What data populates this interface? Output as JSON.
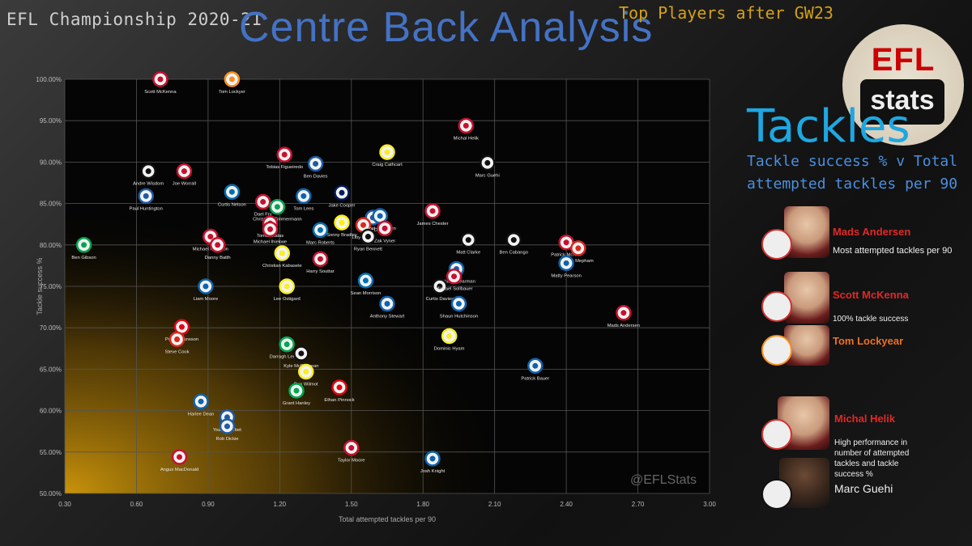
{
  "header": {
    "league": "EFL Championship 2020-21",
    "title": "Centre Back Analysis",
    "subtitle": "Top Players after GW23"
  },
  "logo": {
    "top": "EFL",
    "bottom": "stats"
  },
  "panel": {
    "heading": "Tackles",
    "description": "Tackle success % v Total attempted tackles per 90",
    "highlights": [
      {
        "name": "Mads Andersen",
        "note": "Most attempted tackles per 90"
      },
      {
        "name": "Scott McKenna",
        "note": "100% tackle success"
      },
      {
        "name": "Tom Lockyear",
        "note": ""
      },
      {
        "name": "Michal Helik",
        "note": "High performance in number of attempted tackles and tackle success %"
      },
      {
        "name": "Marc Guehi",
        "note": ""
      }
    ]
  },
  "chart_data": {
    "type": "scatter",
    "title": "",
    "xlabel": "Total attempted tackles per 90",
    "ylabel": "Tackle success %",
    "xlim": [
      0.3,
      3.0
    ],
    "ylim": [
      50,
      100
    ],
    "xticks": [
      "0.30",
      "0.60",
      "0.90",
      "1.20",
      "1.50",
      "1.80",
      "2.10",
      "2.40",
      "2.70",
      "3.00"
    ],
    "yticks": [
      "50.00%",
      "55.00%",
      "60.00%",
      "65.00%",
      "70.00%",
      "75.00%",
      "80.00%",
      "85.00%",
      "90.00%",
      "95.00%",
      "100.00%"
    ],
    "grid": true,
    "watermark": "@EFLStats",
    "points": [
      {
        "name": "Scott McKenna",
        "x": 0.7,
        "y": 100.0,
        "color": "#c8102e"
      },
      {
        "name": "Tom Lockyer",
        "x": 1.0,
        "y": 100.0,
        "color": "#f78f1e"
      },
      {
        "name": "Michal Helik",
        "x": 1.98,
        "y": 94.4,
        "color": "#c8102e"
      },
      {
        "name": "Tobias Figueiredo",
        "x": 1.22,
        "y": 90.9,
        "color": "#c8102e"
      },
      {
        "name": "Craig Cathcart",
        "x": 1.65,
        "y": 91.2,
        "color": "#fbee23"
      },
      {
        "name": "Ben Davies",
        "x": 1.35,
        "y": 89.8,
        "color": "#1d5ba4"
      },
      {
        "name": "Marc Guehi",
        "x": 2.07,
        "y": 89.9,
        "color": "#111111"
      },
      {
        "name": "Andre Wisdom",
        "x": 0.65,
        "y": 88.9,
        "color": "#111111"
      },
      {
        "name": "Joe Worrall",
        "x": 0.8,
        "y": 88.9,
        "color": "#c8102e"
      },
      {
        "name": "Curtis Nelson",
        "x": 1.0,
        "y": 86.4,
        "color": "#0070b5"
      },
      {
        "name": "Dael Fry",
        "x": 1.13,
        "y": 85.2,
        "color": "#c8102e"
      },
      {
        "name": "Christoph Zimmermann",
        "x": 1.19,
        "y": 84.6,
        "color": "#00a650"
      },
      {
        "name": "Tom Lees",
        "x": 1.3,
        "y": 85.9,
        "color": "#0e63ad"
      },
      {
        "name": "Jake Cooper",
        "x": 1.46,
        "y": 86.3,
        "color": "#001d5e"
      },
      {
        "name": "Paul Huntington",
        "x": 0.64,
        "y": 85.9,
        "color": "#1d5ba4"
      },
      {
        "name": "Robert Dickie",
        "x": 1.59,
        "y": 83.3,
        "color": "#1d5ba4"
      },
      {
        "name": "Lloyd Kelly",
        "x": 1.55,
        "y": 82.4,
        "color": "#da291c"
      },
      {
        "name": "Joost van Aken",
        "x": 1.62,
        "y": 83.5,
        "color": "#0e63ad"
      },
      {
        "name": "Tomas Kalas",
        "x": 1.16,
        "y": 82.6,
        "color": "#c8102e"
      },
      {
        "name": "Sonny Bradley",
        "x": 1.46,
        "y": 82.7,
        "color": "#fff200"
      },
      {
        "name": "Zak Vyner",
        "x": 1.64,
        "y": 82.0,
        "color": "#c8102e"
      },
      {
        "name": "James Chester",
        "x": 1.84,
        "y": 84.1,
        "color": "#c8102e"
      },
      {
        "name": "Michael Ihiekwe",
        "x": 1.16,
        "y": 81.9,
        "color": "#c8102e"
      },
      {
        "name": "Marc Roberts",
        "x": 1.37,
        "y": 81.8,
        "color": "#0070b5"
      },
      {
        "name": "Ryan Bennett",
        "x": 1.57,
        "y": 81.0,
        "color": "#111111"
      },
      {
        "name": "Michael Morrison",
        "x": 0.91,
        "y": 81.0,
        "color": "#c8102e"
      },
      {
        "name": "Danny Batth",
        "x": 0.94,
        "y": 80.0,
        "color": "#c8102e"
      },
      {
        "name": "Matt Clarke",
        "x": 1.99,
        "y": 80.6,
        "color": "#111111"
      },
      {
        "name": "Ben Cabango",
        "x": 2.18,
        "y": 80.6,
        "color": "#111111"
      },
      {
        "name": "Patrick McNair",
        "x": 2.4,
        "y": 80.3,
        "color": "#c8102e"
      },
      {
        "name": "Chris Mepham",
        "x": 2.45,
        "y": 79.6,
        "color": "#da291c"
      },
      {
        "name": "Ben Gibson",
        "x": 0.38,
        "y": 80.0,
        "color": "#00a650"
      },
      {
        "name": "Christian Kabasele",
        "x": 1.21,
        "y": 79.0,
        "color": "#fbee23"
      },
      {
        "name": "Harry Souttar",
        "x": 1.37,
        "y": 78.3,
        "color": "#c8102e"
      },
      {
        "name": "Richard Stearman",
        "x": 1.94,
        "y": 77.1,
        "color": "#0e63ad"
      },
      {
        "name": "Matty Pearson",
        "x": 2.4,
        "y": 77.8,
        "color": "#0e63ad"
      },
      {
        "name": "Sean Morrison",
        "x": 1.56,
        "y": 75.7,
        "color": "#0070b5"
      },
      {
        "name": "Liam Moore",
        "x": 0.89,
        "y": 75.0,
        "color": "#0e63ad"
      },
      {
        "name": "Lee Ostigard",
        "x": 1.23,
        "y": 75.0,
        "color": "#fbee23"
      },
      {
        "name": "Curtis Davies",
        "x": 1.87,
        "y": 75.0,
        "color": "#111111"
      },
      {
        "name": "Michael Sollbauer",
        "x": 1.93,
        "y": 76.2,
        "color": "#c8102e"
      },
      {
        "name": "Anthony Stewart",
        "x": 1.65,
        "y": 72.9,
        "color": "#0e63ad"
      },
      {
        "name": "Shaun Hutchinson",
        "x": 1.95,
        "y": 72.9,
        "color": "#0e63ad"
      },
      {
        "name": "Mads Andersen",
        "x": 2.64,
        "y": 71.8,
        "color": "#c8102e"
      },
      {
        "name": "Pontus Jansson",
        "x": 0.79,
        "y": 70.1,
        "color": "#e30613"
      },
      {
        "name": "Steve Cook",
        "x": 0.77,
        "y": 68.6,
        "color": "#da291c"
      },
      {
        "name": "Dominic Hyam",
        "x": 1.91,
        "y": 69.0,
        "color": "#fbee23"
      },
      {
        "name": "Darragh Lenihan",
        "x": 1.23,
        "y": 68.0,
        "color": "#00a650"
      },
      {
        "name": "Kyle McFadzean",
        "x": 1.29,
        "y": 66.9,
        "color": "#111111"
      },
      {
        "name": "Patrick Bauer",
        "x": 2.27,
        "y": 65.4,
        "color": "#0e63ad"
      },
      {
        "name": "Ben Wilmot",
        "x": 1.31,
        "y": 64.7,
        "color": "#fbee23"
      },
      {
        "name": "Ethan Pinnock",
        "x": 1.45,
        "y": 62.8,
        "color": "#e30613"
      },
      {
        "name": "Grant Hanley",
        "x": 1.27,
        "y": 62.4,
        "color": "#00a650"
      },
      {
        "name": "Harlee Dean",
        "x": 0.87,
        "y": 61.1,
        "color": "#0e63ad"
      },
      {
        "name": "Yoann Barbet",
        "x": 0.98,
        "y": 59.2,
        "color": "#1d5ba4"
      },
      {
        "name": "Rob Dickie",
        "x": 0.98,
        "y": 58.1,
        "color": "#1d5ba4"
      },
      {
        "name": "Taylor Moore",
        "x": 1.5,
        "y": 55.5,
        "color": "#c8102e"
      },
      {
        "name": "Angus MacDonald",
        "x": 0.78,
        "y": 54.4,
        "color": "#c8102e"
      },
      {
        "name": "Josh Knight",
        "x": 1.84,
        "y": 54.2,
        "color": "#0e63ad"
      }
    ]
  }
}
